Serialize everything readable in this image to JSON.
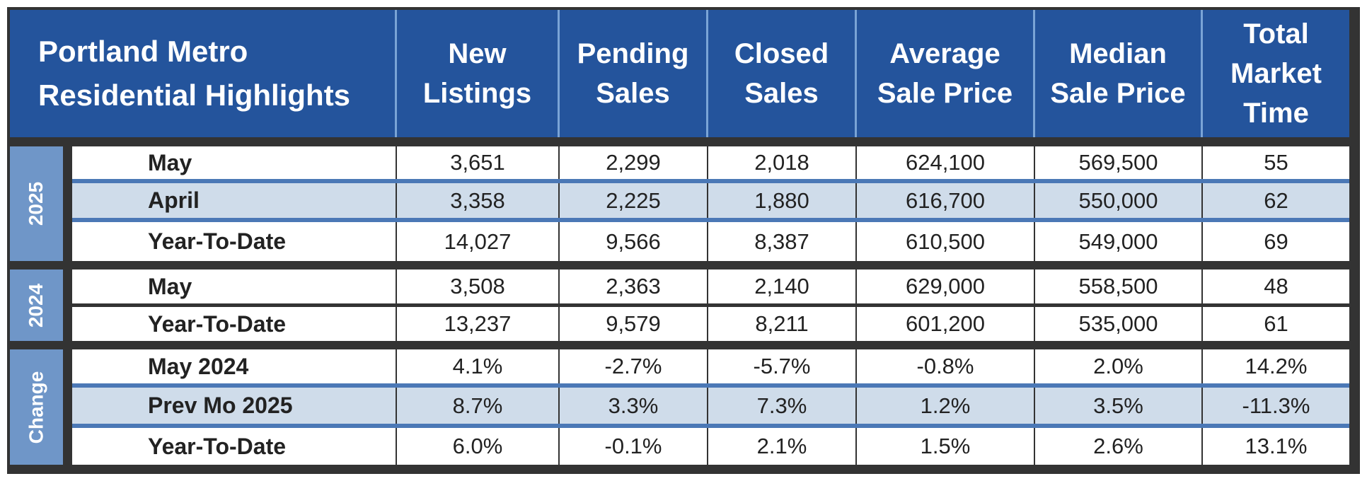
{
  "table": {
    "title": "Portland Metro\nResidential Highlights",
    "columns": [
      "New\nListings",
      "Pending\nSales",
      "Closed\nSales",
      "Average\nSale Price",
      "Median\nSale Price",
      "Total\nMarket\nTime"
    ],
    "groups": [
      {
        "label": "2025",
        "rows": [
          {
            "label": "May",
            "values": [
              "3,651",
              "2,299",
              "2,018",
              "624,100",
              "569,500",
              "55"
            ]
          },
          {
            "label": "April",
            "values": [
              "3,358",
              "2,225",
              "1,880",
              "616,700",
              "550,000",
              "62"
            ]
          },
          {
            "label": "Year-To-Date",
            "values": [
              "14,027",
              "9,566",
              "8,387",
              "610,500",
              "549,000",
              "69"
            ]
          }
        ]
      },
      {
        "label": "2024",
        "rows": [
          {
            "label": "May",
            "values": [
              "3,508",
              "2,363",
              "2,140",
              "629,000",
              "558,500",
              "48"
            ]
          },
          {
            "label": "Year-To-Date",
            "values": [
              "13,237",
              "9,579",
              "8,211",
              "601,200",
              "535,000",
              "61"
            ]
          }
        ]
      },
      {
        "label": "Change",
        "rows": [
          {
            "label": "May 2024",
            "values": [
              "4.1%",
              "-2.7%",
              "-5.7%",
              "-0.8%",
              "2.0%",
              "14.2%"
            ]
          },
          {
            "label": "Prev Mo 2025",
            "values": [
              "8.7%",
              "3.3%",
              "7.3%",
              "1.2%",
              "3.5%",
              "-11.3%"
            ]
          },
          {
            "label": "Year-To-Date",
            "values": [
              "6.0%",
              "-0.1%",
              "2.1%",
              "1.5%",
              "2.6%",
              "13.1%"
            ]
          }
        ]
      }
    ]
  }
}
